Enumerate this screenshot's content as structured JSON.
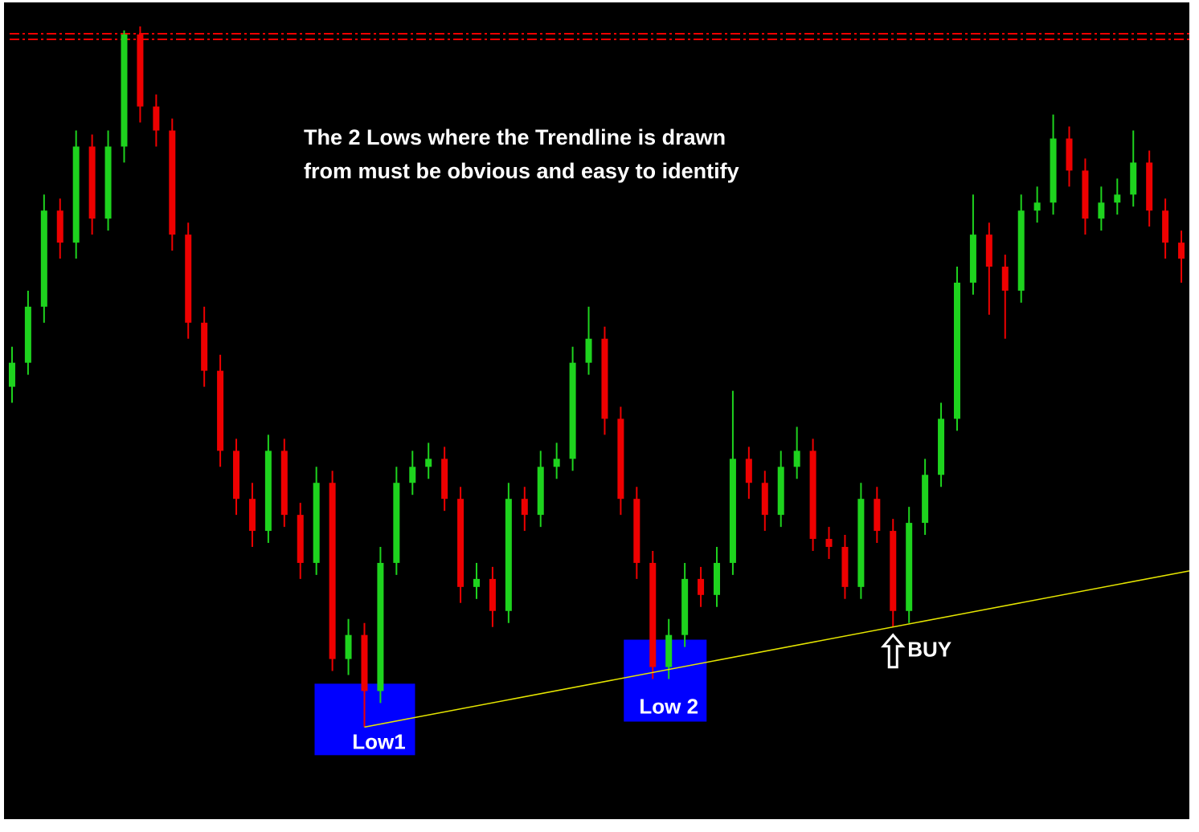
{
  "chart_data": {
    "type": "candlestick",
    "annotation_lines": [
      "The 2 Lows where the Trendline is drawn",
      "from must be obvious and easy to identify"
    ],
    "low_labels": [
      "Low1",
      "Low 2"
    ],
    "signal_label": "BUY",
    "up_color": "#1ed31e",
    "down_color": "#ee0000",
    "trendline_color": "#e6e600",
    "box_color": "#0000ff",
    "ylim": [
      0,
      1020
    ],
    "ohlc": [
      [
        540,
        590,
        520,
        570
      ],
      [
        570,
        660,
        555,
        640
      ],
      [
        640,
        780,
        620,
        760
      ],
      [
        760,
        775,
        700,
        720
      ],
      [
        720,
        860,
        700,
        840
      ],
      [
        840,
        855,
        730,
        750
      ],
      [
        750,
        860,
        735,
        840
      ],
      [
        840,
        985,
        820,
        980
      ],
      [
        980,
        990,
        870,
        890
      ],
      [
        890,
        905,
        840,
        860
      ],
      [
        860,
        875,
        710,
        730
      ],
      [
        730,
        745,
        600,
        620
      ],
      [
        620,
        640,
        540,
        560
      ],
      [
        560,
        580,
        440,
        460
      ],
      [
        460,
        475,
        380,
        400
      ],
      [
        400,
        420,
        340,
        360
      ],
      [
        360,
        480,
        345,
        460
      ],
      [
        460,
        475,
        365,
        380
      ],
      [
        380,
        395,
        300,
        320
      ],
      [
        320,
        440,
        305,
        420
      ],
      [
        420,
        435,
        185,
        200
      ],
      [
        200,
        250,
        180,
        230
      ],
      [
        230,
        245,
        115,
        160
      ],
      [
        160,
        340,
        145,
        320
      ],
      [
        320,
        440,
        305,
        420
      ],
      [
        420,
        460,
        405,
        440
      ],
      [
        440,
        470,
        425,
        450
      ],
      [
        450,
        465,
        385,
        400
      ],
      [
        400,
        415,
        270,
        290
      ],
      [
        290,
        320,
        275,
        300
      ],
      [
        300,
        315,
        240,
        260
      ],
      [
        260,
        420,
        245,
        400
      ],
      [
        400,
        415,
        360,
        380
      ],
      [
        380,
        460,
        365,
        440
      ],
      [
        440,
        470,
        425,
        450
      ],
      [
        450,
        590,
        435,
        570
      ],
      [
        570,
        640,
        555,
        600
      ],
      [
        600,
        615,
        480,
        500
      ],
      [
        500,
        515,
        380,
        400
      ],
      [
        400,
        415,
        300,
        320
      ],
      [
        320,
        335,
        175,
        190
      ],
      [
        190,
        250,
        175,
        230
      ],
      [
        230,
        320,
        215,
        300
      ],
      [
        300,
        315,
        265,
        280
      ],
      [
        280,
        340,
        265,
        320
      ],
      [
        320,
        535,
        305,
        450
      ],
      [
        450,
        465,
        400,
        420
      ],
      [
        420,
        435,
        360,
        380
      ],
      [
        380,
        460,
        365,
        440
      ],
      [
        440,
        490,
        425,
        460
      ],
      [
        460,
        475,
        335,
        350
      ],
      [
        350,
        365,
        325,
        340
      ],
      [
        340,
        355,
        275,
        290
      ],
      [
        290,
        420,
        275,
        400
      ],
      [
        400,
        415,
        345,
        360
      ],
      [
        360,
        375,
        240,
        260
      ],
      [
        260,
        390,
        245,
        370
      ],
      [
        370,
        450,
        355,
        430
      ],
      [
        430,
        520,
        415,
        500
      ],
      [
        500,
        690,
        485,
        670
      ],
      [
        670,
        780,
        655,
        730
      ],
      [
        730,
        745,
        630,
        690
      ],
      [
        690,
        705,
        600,
        660
      ],
      [
        660,
        780,
        645,
        760
      ],
      [
        760,
        790,
        745,
        770
      ],
      [
        770,
        880,
        755,
        850
      ],
      [
        850,
        865,
        790,
        810
      ],
      [
        810,
        825,
        730,
        750
      ],
      [
        750,
        790,
        735,
        770
      ],
      [
        770,
        800,
        755,
        780
      ],
      [
        780,
        860,
        765,
        820
      ],
      [
        820,
        835,
        740,
        760
      ],
      [
        760,
        775,
        700,
        720
      ],
      [
        720,
        735,
        670,
        700
      ]
    ]
  }
}
